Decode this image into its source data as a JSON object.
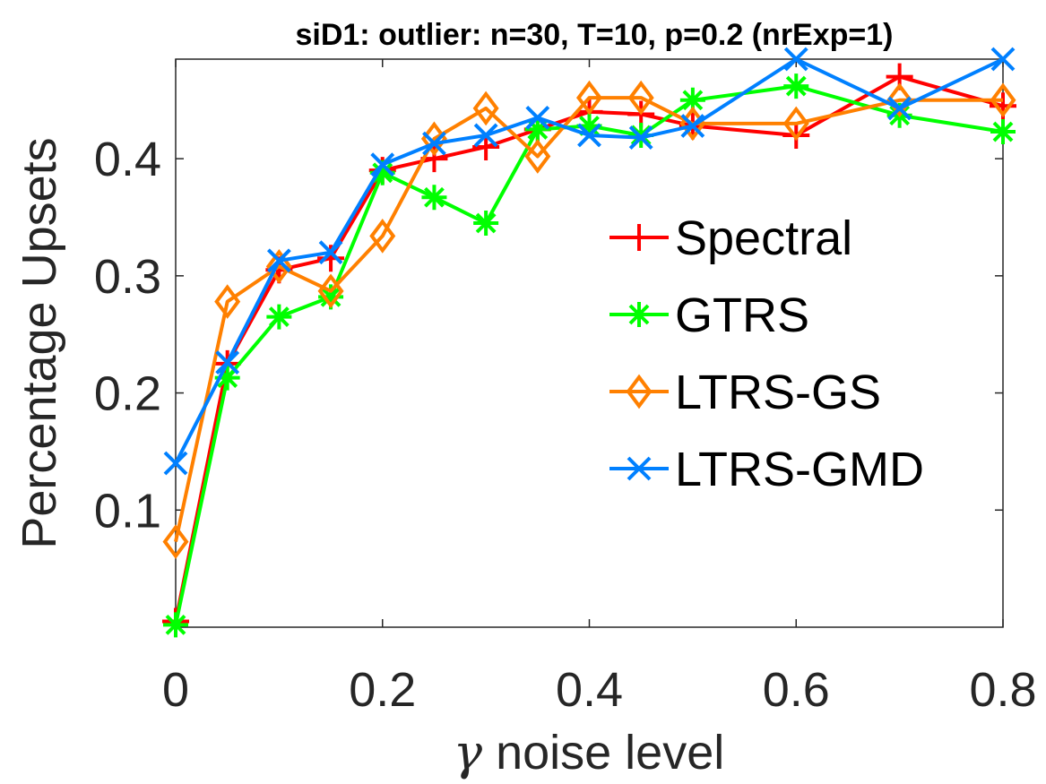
{
  "chart_data": {
    "type": "line",
    "title": "siD1: outlier: n=30, T=10, p=0.2 (nrExp=1)",
    "xlabel_symbol": "γ",
    "xlabel": "noise level",
    "ylabel": "Percentage Upsets",
    "xlim": [
      0,
      0.8
    ],
    "ylim": [
      0,
      0.485
    ],
    "xticks": [
      "0",
      "0.2",
      "0.4",
      "0.6",
      "0.8"
    ],
    "yticks": [
      "0.1",
      "0.2",
      "0.3",
      "0.4"
    ],
    "x": [
      0,
      0.05,
      0.1,
      0.15,
      0.2,
      0.25,
      0.3,
      0.35,
      0.4,
      0.45,
      0.5,
      0.6,
      0.7,
      0.8
    ],
    "series": [
      {
        "name": "Spectral",
        "color": "#ff0000",
        "marker": "plus",
        "values": [
          0.005,
          0.225,
          0.305,
          0.315,
          0.39,
          0.4,
          0.41,
          0.425,
          0.44,
          0.438,
          0.428,
          0.42,
          0.47,
          0.445
        ]
      },
      {
        "name": "GTRS",
        "color": "#00ff00",
        "marker": "asterisk",
        "values": [
          0.002,
          0.213,
          0.265,
          0.282,
          0.388,
          0.367,
          0.345,
          0.425,
          0.428,
          0.42,
          0.45,
          0.462,
          0.437,
          0.423
        ]
      },
      {
        "name": "LTRS-GS",
        "color": "#ff8000",
        "marker": "diamond",
        "values": [
          0.073,
          0.278,
          0.308,
          0.287,
          0.334,
          0.417,
          0.443,
          0.402,
          0.452,
          0.452,
          0.43,
          0.43,
          0.45,
          0.45
        ]
      },
      {
        "name": "LTRS-GMD",
        "color": "#0080ff",
        "marker": "x",
        "values": [
          0.14,
          0.226,
          0.313,
          0.32,
          0.395,
          0.413,
          0.42,
          0.435,
          0.42,
          0.418,
          0.428,
          0.485,
          0.443,
          0.485
        ]
      }
    ],
    "legend_position": "right",
    "grid": false
  }
}
